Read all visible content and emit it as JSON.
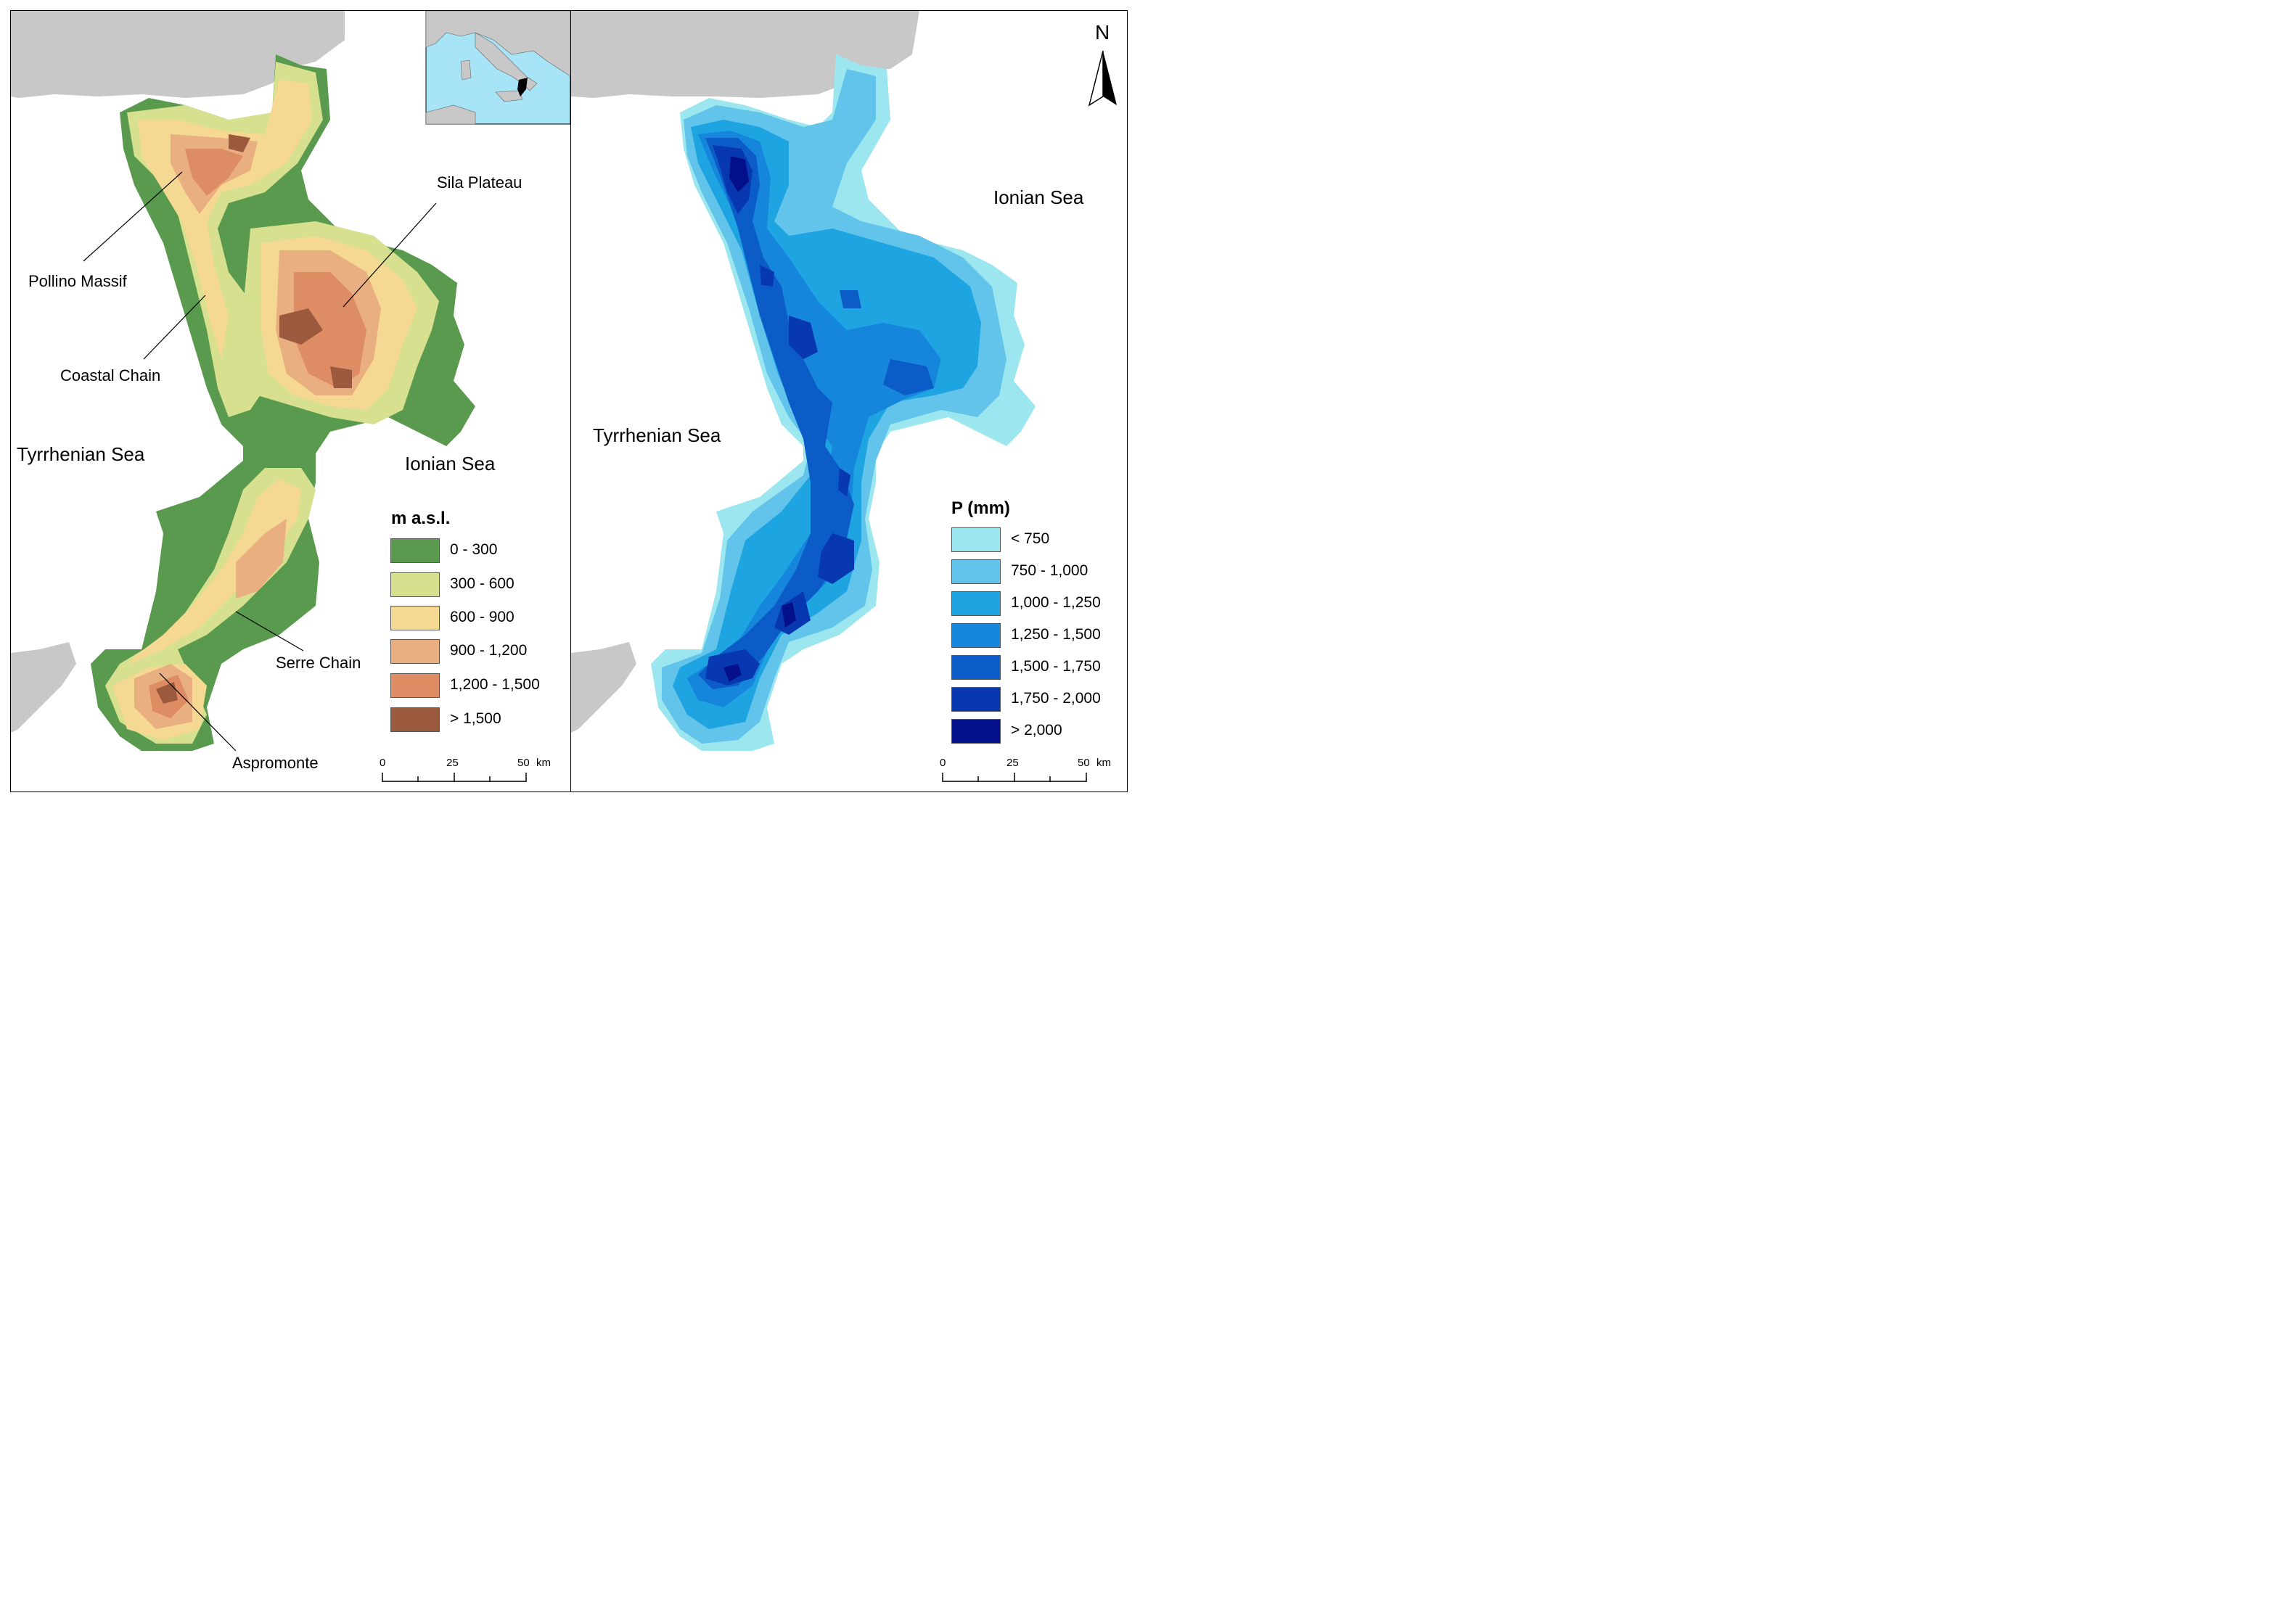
{
  "left_map": {
    "places": {
      "pollino": "Pollino Massif",
      "coastal": "Coastal Chain",
      "sila": "Sila Plateau",
      "serre": "Serre Chain",
      "aspromonte": "Aspromonte"
    },
    "seas": {
      "tyrrhenian": "Tyrrhenian Sea",
      "ionian": "Ionian Sea"
    },
    "legend": {
      "title": "m a.s.l.",
      "items": [
        {
          "label": "0 - 300",
          "color": "#5a9a4e"
        },
        {
          "label": "300 - 600",
          "color": "#d6e08e"
        },
        {
          "label": "600 - 900",
          "color": "#f5d992"
        },
        {
          "label": "900 - 1,200",
          "color": "#eaaf80"
        },
        {
          "label": "1,200 - 1,500",
          "color": "#de8c63"
        },
        {
          "label": ">  1,500",
          "color": "#9b5a3e"
        }
      ]
    },
    "scalebar": {
      "ticks": [
        "0",
        "25",
        "50"
      ],
      "unit": "km"
    }
  },
  "right_map": {
    "seas": {
      "tyrrhenian": "Tyrrhenian Sea",
      "ionian": "Ionian Sea"
    },
    "legend": {
      "title": "P (mm)",
      "items": [
        {
          "label": "< 750",
          "color": "#9ce7ef"
        },
        {
          "label": "750 - 1,000",
          "color": "#62c4ea"
        },
        {
          "label": "1,000 - 1,250",
          "color": "#1fa4e2"
        },
        {
          "label": "1,250 - 1,500",
          "color": "#1586dc"
        },
        {
          "label": "1,500 - 1,750",
          "color": "#0c5cc7"
        },
        {
          "label": "1,750 - 2,000",
          "color": "#0838b0"
        },
        {
          "label": ">  2,000",
          "color": "#040f8c"
        }
      ]
    },
    "scalebar": {
      "ticks": [
        "0",
        "25",
        "50"
      ],
      "unit": "km"
    },
    "north_arrow": "N"
  },
  "colors": {
    "land_neighbor": "#c8c8c8",
    "inset_sea": "#a7e4f7",
    "map_bg": "#ffffff"
  }
}
